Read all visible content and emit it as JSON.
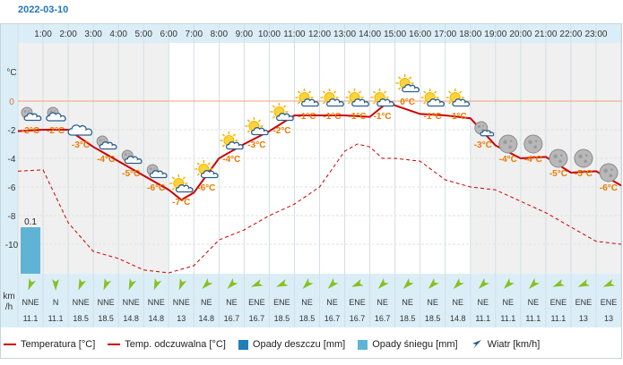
{
  "date": "2022-03-10",
  "units": {
    "temp": "°C",
    "wind": "km\n/h"
  },
  "colors": {
    "temp": "#cc0000",
    "apparent": "#cc0000",
    "rain": "#1f7fb8",
    "snow": "#5fb4d6",
    "wind_arrow": "#88c020",
    "day_band": "#f0f0f0",
    "zero_line": "#f0a07a",
    "header_bg": "#dbeef8"
  },
  "chart_data": {
    "type": "line",
    "hours": [
      "1:00",
      "2:00",
      "3:00",
      "4:00",
      "5:00",
      "6:00",
      "7:00",
      "8:00",
      "9:00",
      "10:00",
      "11:00",
      "12:00",
      "13:00",
      "14:00",
      "15:00",
      "16:00",
      "17:00",
      "18:00",
      "19:00",
      "20:00",
      "21:00",
      "22:00",
      "23:00"
    ],
    "y_ticks": [
      "°C",
      "0",
      "-2",
      "-4",
      "-6",
      "-8",
      "-10"
    ],
    "ylim": [
      -11.5,
      1.5
    ],
    "series": [
      {
        "name": "Temperatura [°C]",
        "style": "solid",
        "x": [
          0,
          1,
          2,
          3,
          4,
          5,
          6,
          6.5,
          7,
          8,
          9,
          10,
          11,
          12,
          13,
          14,
          14.7,
          15,
          16,
          17,
          18,
          19,
          20,
          21,
          22,
          23,
          24
        ],
        "values": [
          -2.1,
          -2.0,
          -2.0,
          -3.2,
          -4.2,
          -5.2,
          -6.2,
          -6.9,
          -6.4,
          -4.0,
          -3.0,
          -2.1,
          -1.0,
          -1.0,
          -1.0,
          -1.1,
          -0.1,
          -0.3,
          -0.9,
          -1.0,
          -1.2,
          -3.1,
          -4.0,
          -3.9,
          -5.0,
          -4.9,
          -5.9
        ]
      },
      {
        "name": "Temp. odczuwalna [°C]",
        "style": "dashed",
        "x": [
          0,
          1,
          2,
          3,
          4,
          5,
          6,
          7,
          8,
          9,
          10,
          11,
          12,
          13,
          13.5,
          14,
          14.5,
          15,
          16,
          17,
          18,
          19,
          20,
          21,
          22,
          23,
          24
        ],
        "values": [
          -4.9,
          -4.8,
          -8.5,
          -10.5,
          -11.0,
          -11.8,
          -12.0,
          -11.5,
          -9.7,
          -9.0,
          -8.0,
          -7.2,
          -6.0,
          -3.5,
          -3.0,
          -3.2,
          -4.0,
          -4.0,
          -4.2,
          -5.5,
          -6.0,
          -6.2,
          -7.0,
          -7.8,
          -8.8,
          -9.8,
          -10.0
        ]
      }
    ],
    "point_labels": [
      "-2°C",
      "-2°C",
      "-3°C",
      "-4°C",
      "-5°C",
      "-6°C",
      "-7°C",
      "-6°C",
      "-4°C",
      "-3°C",
      "-2°C",
      "-1°C",
      "-1°C",
      "-1°C",
      "-1°C",
      "0°C",
      "-1°C",
      "-1°C",
      "-3°C",
      "-4°C",
      "-4°C",
      "-5°C",
      "-5°C",
      "-6°C"
    ],
    "point_label_values": [
      -2,
      -2,
      -3,
      -4,
      -5,
      -6,
      -7,
      -6,
      -4,
      -3,
      -2,
      -1,
      -1,
      -1,
      -1,
      0,
      -1,
      -1,
      -3,
      -4,
      -4,
      -5,
      -5,
      -6
    ],
    "precipitation": {
      "type": "snow",
      "hour_index": 0,
      "value": 0.1,
      "label": "0.1"
    },
    "weather_icons": [
      "night-partly-cloudy",
      "night-cloudy",
      "cloud",
      "night-partly-cloudy",
      "night-partly-cloudy",
      "night-partly-cloudy",
      "sun-cloud",
      "sun-cloud",
      "sun-cloud",
      "sun-cloud",
      "sun-cloud",
      "sun-cloud",
      "sun-cloud",
      "sun-cloud",
      "sun-cloud",
      "sun-cloud",
      "sun-cloud",
      "sun-cloud",
      "moon-cloud",
      "moon",
      "moon",
      "moon",
      "moon",
      "moon"
    ],
    "wind_dir": [
      "NNE",
      "N",
      "NNE",
      "NNE",
      "NNE",
      "NNE",
      "NNE",
      "NE",
      "NE",
      "ENE",
      "ENE",
      "NE",
      "NE",
      "ENE",
      "NE",
      "NE",
      "NE",
      "NE",
      "NE",
      "NE",
      "NE",
      "ENE",
      "ENE",
      "ENE"
    ],
    "wind_speed": [
      "11.1",
      "11.1",
      "18.5",
      "18.5",
      "14.8",
      "14.8",
      "13",
      "14.8",
      "16.7",
      "16.7",
      "18.5",
      "18.5",
      "16.7",
      "16.7",
      "16.7",
      "18.5",
      "18.5",
      "14.8",
      "11.1",
      "11.1",
      "11.1",
      "11.1",
      "13",
      "13"
    ],
    "wind_deg": [
      22,
      0,
      22,
      22,
      22,
      22,
      22,
      45,
      45,
      67,
      67,
      45,
      45,
      67,
      45,
      45,
      45,
      45,
      45,
      45,
      45,
      67,
      67,
      67
    ]
  },
  "legend": {
    "temp": "Temperatura [°C]",
    "apparent": "Temp. odczuwalna [°C]",
    "rain": "Opady deszczu [mm]",
    "snow": "Opady śniegu [mm]",
    "wind": "Wiatr [km/h]"
  }
}
